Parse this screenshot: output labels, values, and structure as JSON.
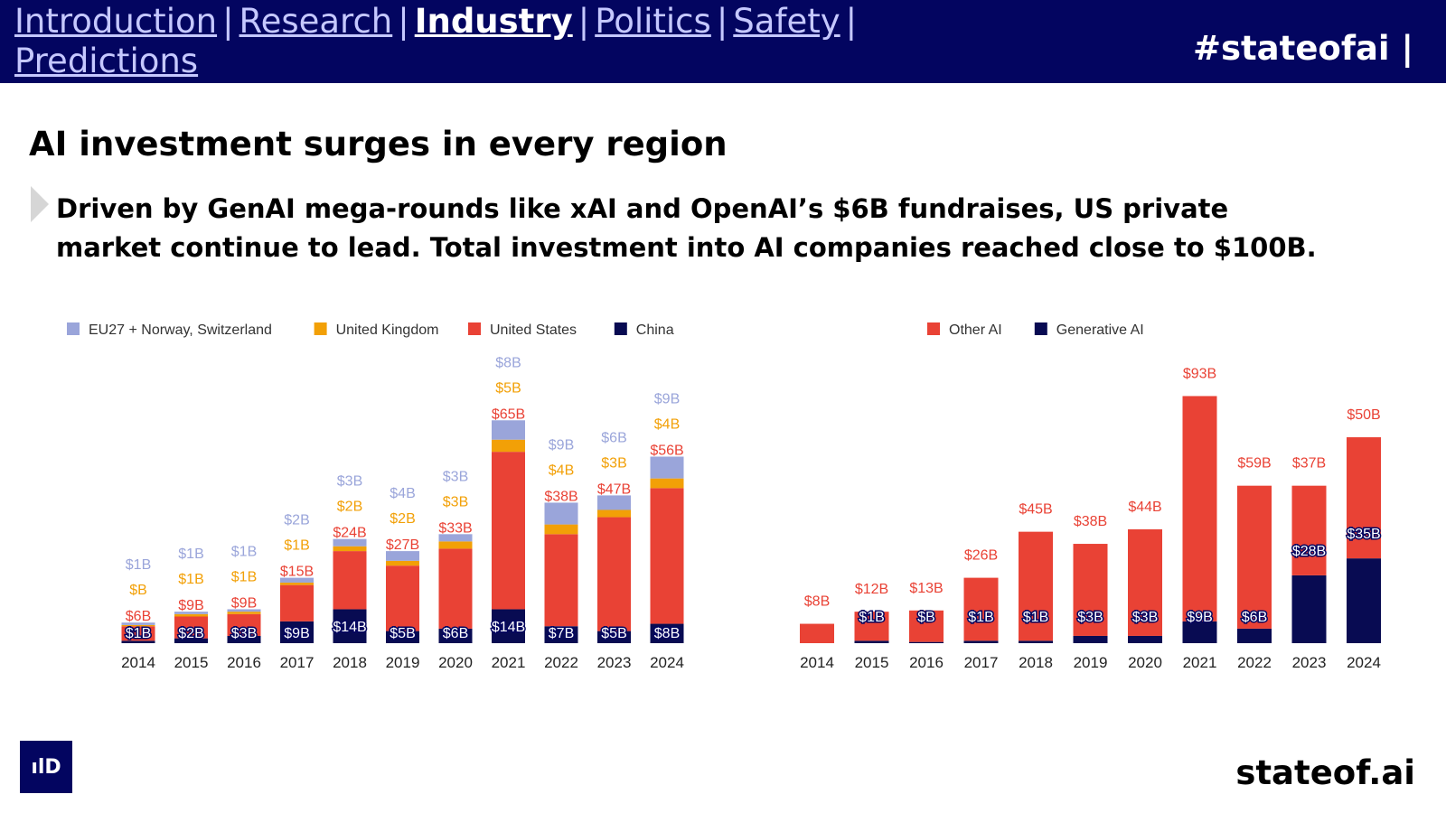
{
  "nav": {
    "items": [
      {
        "label": "Introduction",
        "active": false
      },
      {
        "label": "Research",
        "active": false
      },
      {
        "label": "Industry",
        "active": true
      },
      {
        "label": "Politics",
        "active": false
      },
      {
        "label": "Safety",
        "active": false
      },
      {
        "label": "Predictions",
        "active": false
      }
    ],
    "separator": "|",
    "hashtag": "#stateofai |"
  },
  "title": "AI investment surges in every region",
  "subtitle": "Driven by GenAI mega-rounds like xAI and OpenAI’s $6B fundraises, US private market continue to lead. Total investment into AI companies reached close to $100B.",
  "footer": {
    "logo_text": "ılD",
    "site": "stateof.ai"
  },
  "colors": {
    "navy": "#030560",
    "nav_text": "#c5c8ff",
    "eu": "#9aa5da",
    "uk": "#f2a007",
    "us": "#e94235",
    "china": "#080b52",
    "other_ai": "#e94235",
    "generative_ai": "#080b52"
  },
  "chart_data": [
    {
      "type": "bar",
      "stacked": true,
      "categories": [
        "2014",
        "2015",
        "2016",
        "2017",
        "2018",
        "2019",
        "2020",
        "2021",
        "2022",
        "2023",
        "2024"
      ],
      "ylim": [
        0,
        110
      ],
      "legend_position": "top",
      "series": [
        {
          "name": "China",
          "color": "#080b52",
          "values": [
            1,
            2,
            3,
            9,
            14,
            5,
            6,
            14,
            7,
            5,
            8
          ],
          "labels": [
            "$1B",
            "$2B",
            "$3B",
            "$9B",
            "$14B",
            "$5B",
            "$6B",
            "$14B",
            "$7B",
            "$5B",
            "$8B"
          ]
        },
        {
          "name": "United States",
          "color": "#e94235",
          "values": [
            6,
            9,
            9,
            15,
            24,
            27,
            33,
            65,
            38,
            47,
            56
          ],
          "labels": [
            "$6B",
            "$9B",
            "$9B",
            "$15B",
            "$24B",
            "$27B",
            "$33B",
            "$65B",
            "$38B",
            "$47B",
            "$56B"
          ]
        },
        {
          "name": "United Kingdom",
          "color": "#f2a007",
          "values": [
            0.5,
            1,
            1,
            1,
            2,
            2,
            3,
            5,
            4,
            3,
            4
          ],
          "labels": [
            "$B",
            "$1B",
            "$1B",
            "$1B",
            "$2B",
            "$2B",
            "$3B",
            "$5B",
            "$4B",
            "$3B",
            "$4B"
          ]
        },
        {
          "name": "EU27 + Norway, Switzerland",
          "color": "#9aa5da",
          "values": [
            1,
            1,
            1,
            2,
            3,
            4,
            3,
            8,
            9,
            6,
            9
          ],
          "labels": [
            "$1B",
            "$1B",
            "$1B",
            "$2B",
            "$3B",
            "$4B",
            "$3B",
            "$8B",
            "$9B",
            "$6B",
            "$9B"
          ]
        }
      ],
      "legend_order": [
        "EU27 + Norway, Switzerland",
        "United Kingdom",
        "United States",
        "China"
      ]
    },
    {
      "type": "bar",
      "stacked": true,
      "categories": [
        "2014",
        "2015",
        "2016",
        "2017",
        "2018",
        "2019",
        "2020",
        "2021",
        "2022",
        "2023",
        "2024"
      ],
      "ylim": [
        0,
        110
      ],
      "legend_position": "top",
      "series": [
        {
          "name": "Generative AI",
          "color": "#080b52",
          "values": [
            0,
            1,
            0.5,
            1,
            1,
            3,
            3,
            9,
            6,
            28,
            35
          ],
          "labels": [
            "",
            "$1B",
            "$B",
            "$1B",
            "$1B",
            "$3B",
            "$3B",
            "$9B",
            "$6B",
            "$28B",
            "$35B"
          ]
        },
        {
          "name": "Other AI",
          "color": "#e94235",
          "values": [
            8,
            12,
            13,
            26,
            45,
            38,
            44,
            93,
            59,
            37,
            50
          ],
          "labels": [
            "$8B",
            "$12B",
            "$13B",
            "$26B",
            "$45B",
            "$38B",
            "$44B",
            "$93B",
            "$59B",
            "$37B",
            "$50B"
          ]
        }
      ],
      "legend_order": [
        "Other AI",
        "Generative AI"
      ]
    }
  ]
}
